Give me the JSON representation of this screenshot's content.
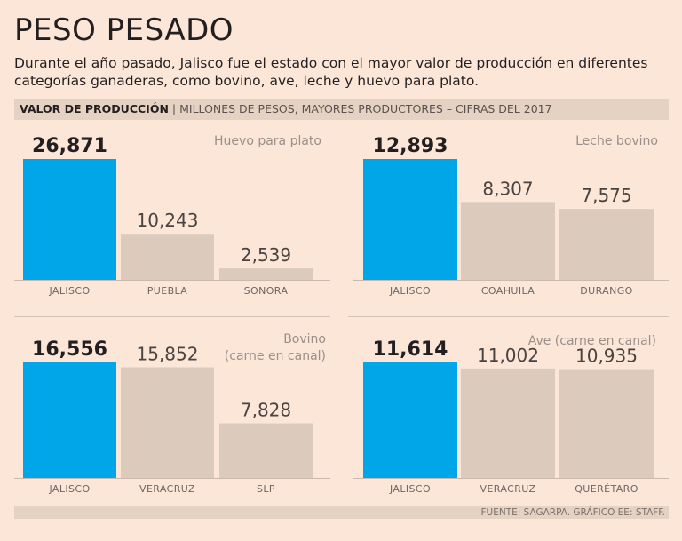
{
  "header": {
    "title": "PESO PESADO",
    "subtitle": "Durante el año pasado, Jalisco fue el estado con el mayor valor de producción en diferentes categorías ganaderas, como bovino, ave, leche y huevo para plato.",
    "banner_bold": "VALOR DE PRODUCCIÓN",
    "banner_sep": "|",
    "banner_rest": "MILLONES DE PESOS, MAYORES PRODUCTORES – CIFRAS DEL 2017"
  },
  "footer": {
    "source": "FUENTE: SAGARPA. GRÁFICO EE: STAFF."
  },
  "colors": {
    "highlight": "#00a6e8",
    "bar": "#dccbbd",
    "label": "#9a8f8a",
    "axis": "#cbb9ab"
  },
  "chart_data": [
    {
      "type": "bar",
      "title_lines": [
        "Huevo para plato"
      ],
      "categories": [
        "JALISCO",
        "PUEBLA",
        "SONORA"
      ],
      "values": [
        26871,
        10243,
        2539
      ],
      "value_labels": [
        "26,871",
        "10,243",
        "2,539"
      ],
      "highlight_index": 0,
      "ylabel": "Millones de pesos"
    },
    {
      "type": "bar",
      "title_lines": [
        "Leche bovino"
      ],
      "categories": [
        "JALISCO",
        "COAHUILA",
        "DURANGO"
      ],
      "values": [
        12893,
        8307,
        7575
      ],
      "value_labels": [
        "12,893",
        "8,307",
        "7,575"
      ],
      "highlight_index": 0,
      "ylabel": "Millones de pesos"
    },
    {
      "type": "bar",
      "title_lines": [
        "Bovino",
        "(carne en canal)"
      ],
      "categories": [
        "JALISCO",
        "VERACRUZ",
        "SLP"
      ],
      "values": [
        16556,
        15852,
        7828
      ],
      "value_labels": [
        "16,556",
        "15,852",
        "7,828"
      ],
      "highlight_index": 0,
      "ylabel": "Millones de pesos"
    },
    {
      "type": "bar",
      "title_lines": [
        "Ave (carne en canal)"
      ],
      "categories": [
        "JALISCO",
        "VERACRUZ",
        "QUERÉTARO"
      ],
      "values": [
        11614,
        11002,
        10935
      ],
      "value_labels": [
        "11,614",
        "11,002",
        "10,935"
      ],
      "highlight_index": 0,
      "ylabel": "Millones de pesos"
    }
  ]
}
